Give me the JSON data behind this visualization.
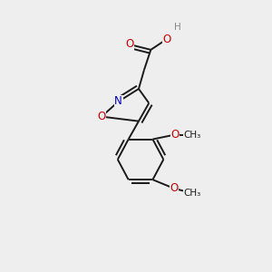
{
  "bg_color": "#eeeeee",
  "bond_color": "#1a1a1a",
  "atom_colors": {
    "O": "#cc0000",
    "N": "#0000cc",
    "H": "#888888",
    "C": "#1a1a1a"
  },
  "font_size": 8.5,
  "lw": 1.4
}
